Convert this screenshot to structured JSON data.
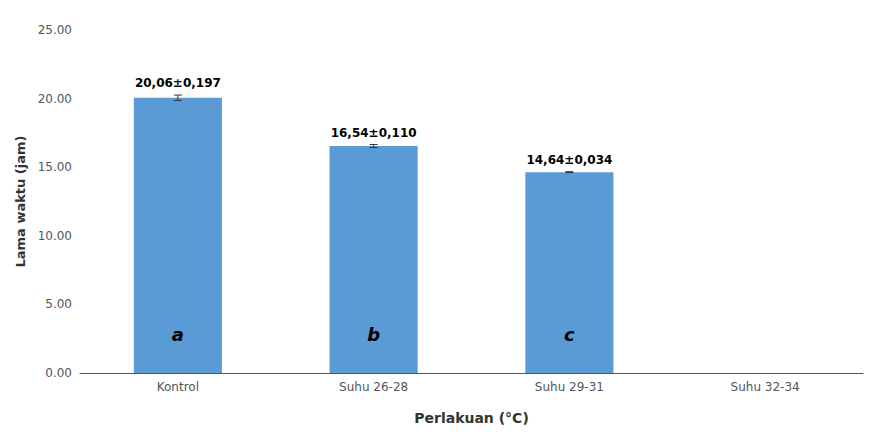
{
  "chart_data": {
    "type": "bar",
    "categories": [
      "Kontrol",
      "Suhu 26-28",
      "Suhu 29-31",
      "Suhu 32-34"
    ],
    "values": [
      20.06,
      16.54,
      14.64,
      null
    ],
    "errors": [
      0.197,
      0.11,
      0.034,
      null
    ],
    "value_labels": [
      "20,06±0,197",
      "16,54±0,110",
      "14,64±0,034",
      null
    ],
    "annotations": [
      "a",
      "b",
      "c",
      null
    ],
    "color": "#5b9bd5",
    "xlabel": "Perlakuan (°C)",
    "ylabel": "Lama waktu (jam)",
    "ylim": [
      0,
      25
    ],
    "yticks": [
      {
        "value": 0,
        "label": "0.00"
      },
      {
        "value": 5,
        "label": "5.00"
      },
      {
        "value": 10,
        "label": "10.00"
      },
      {
        "value": 15,
        "label": "15.00"
      },
      {
        "value": 20,
        "label": "20.00"
      },
      {
        "value": 25,
        "label": "25.00"
      }
    ],
    "grid": false
  }
}
